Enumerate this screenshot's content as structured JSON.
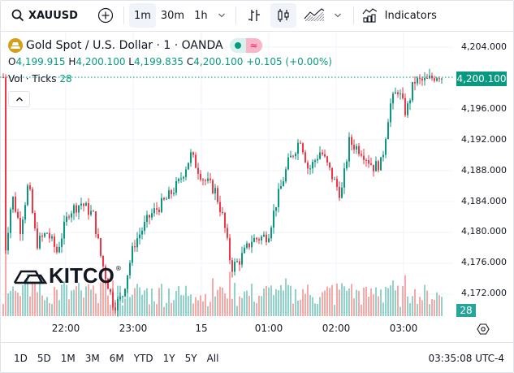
{
  "toolbar": {
    "symbol": "XAUUSD",
    "intervals": [
      "1m",
      "30m",
      "1h"
    ],
    "active_interval": "1m",
    "indicators_label": "Indicators",
    "icons": [
      "search-icon",
      "add-symbol-icon",
      "interval-dropdown-icon",
      "bar-style-icon",
      "candle-style-icon",
      "area-style-icon",
      "chart-type-dropdown-icon",
      "indicators-icon"
    ]
  },
  "legend": {
    "title": "Gold Spot / U.S. Dollar · 1 · OANDA",
    "open_label": "O",
    "open": "4,199.915",
    "high_label": "H",
    "high": "4,200.100",
    "low_label": "L",
    "low": "4,199.835",
    "close_label": "C",
    "close": "4,200.100",
    "change": "+0.105 (+0.00%)",
    "vol_label": "Vol · Ticks",
    "vol_value": "28",
    "market_status_icon": "market-open-dot-icon",
    "data_status_icon": "delayed-data-icon"
  },
  "price_axis": {
    "ticks": [
      "4,204.000",
      "4,196.000",
      "4,192.000",
      "4,188.000",
      "4,184.000",
      "4,180.000",
      "4,176.000",
      "4,172.000"
    ],
    "last_price": "4,200.100",
    "volume_badge": "28"
  },
  "time_axis": {
    "ticks": [
      "22:00",
      "23:00",
      "15",
      "01:00",
      "02:00",
      "03:00"
    ]
  },
  "bottom_bar": {
    "ranges": [
      "1D",
      "5D",
      "1M",
      "3M",
      "6M",
      "YTD",
      "1Y",
      "5Y",
      "All"
    ],
    "clock": "03:35:08 UTC-4"
  },
  "watermark": {
    "text": "KITCO",
    "mark": "®"
  },
  "colors": {
    "up": "#089981",
    "down": "#f23645",
    "vol_up": "#8fd3ca",
    "vol_down": "#f7a9a7",
    "grid": "#f0f3fa",
    "last_price_bg": "#089981"
  },
  "chart_data": {
    "type": "candlestick",
    "title": "Gold Spot / U.S. Dollar · 1 · OANDA",
    "symbol": "XAUUSD",
    "interval": "1m",
    "ylim": [
      4170,
      4205
    ],
    "yticks": [
      4172,
      4176,
      4180,
      4184,
      4188,
      4192,
      4196,
      4200,
      4204
    ],
    "xticks": [
      "22:00",
      "23:00",
      "15",
      "01:00",
      "02:00",
      "03:00"
    ],
    "grid": true,
    "last": {
      "open": 4199.915,
      "high": 4200.1,
      "low": 4199.835,
      "close": 4200.1,
      "change": 0.105,
      "change_pct": 0.0,
      "volume": 28
    },
    "price_path": [
      {
        "x": 5,
        "p": 4176.4
      },
      {
        "x": 15,
        "p": 4184.8
      },
      {
        "x": 25,
        "p": 4180.5
      },
      {
        "x": 35,
        "p": 4186.4
      },
      {
        "x": 45,
        "p": 4178.5
      },
      {
        "x": 58,
        "p": 4180.0
      },
      {
        "x": 70,
        "p": 4177.5
      },
      {
        "x": 85,
        "p": 4182.7
      },
      {
        "x": 100,
        "p": 4183.8
      },
      {
        "x": 115,
        "p": 4182.2
      },
      {
        "x": 125,
        "p": 4176.4
      },
      {
        "x": 140,
        "p": 4170.5
      },
      {
        "x": 150,
        "p": 4171.5
      },
      {
        "x": 165,
        "p": 4178.5
      },
      {
        "x": 185,
        "p": 4182.2
      },
      {
        "x": 205,
        "p": 4184.3
      },
      {
        "x": 220,
        "p": 4186.4
      },
      {
        "x": 235,
        "p": 4190.0
      },
      {
        "x": 250,
        "p": 4187.0
      },
      {
        "x": 265,
        "p": 4185.4
      },
      {
        "x": 275,
        "p": 4181.7
      },
      {
        "x": 285,
        "p": 4175.4
      },
      {
        "x": 295,
        "p": 4176.4
      },
      {
        "x": 310,
        "p": 4179.0
      },
      {
        "x": 330,
        "p": 4179.6
      },
      {
        "x": 340,
        "p": 4183.8
      },
      {
        "x": 355,
        "p": 4189.0
      },
      {
        "x": 370,
        "p": 4192.2
      },
      {
        "x": 380,
        "p": 4188.0
      },
      {
        "x": 395,
        "p": 4190.6
      },
      {
        "x": 410,
        "p": 4187.0
      },
      {
        "x": 420,
        "p": 4184.8
      },
      {
        "x": 430,
        "p": 4191.7
      },
      {
        "x": 445,
        "p": 4190.6
      },
      {
        "x": 460,
        "p": 4188.5
      },
      {
        "x": 470,
        "p": 4189.0
      },
      {
        "x": 480,
        "p": 4196.4
      },
      {
        "x": 490,
        "p": 4198.5
      },
      {
        "x": 500,
        "p": 4195.4
      },
      {
        "x": 510,
        "p": 4199.6
      },
      {
        "x": 525,
        "p": 4199.6
      },
      {
        "x": 540,
        "p": 4200.5
      },
      {
        "x": 545,
        "p": 4200.1
      }
    ]
  }
}
